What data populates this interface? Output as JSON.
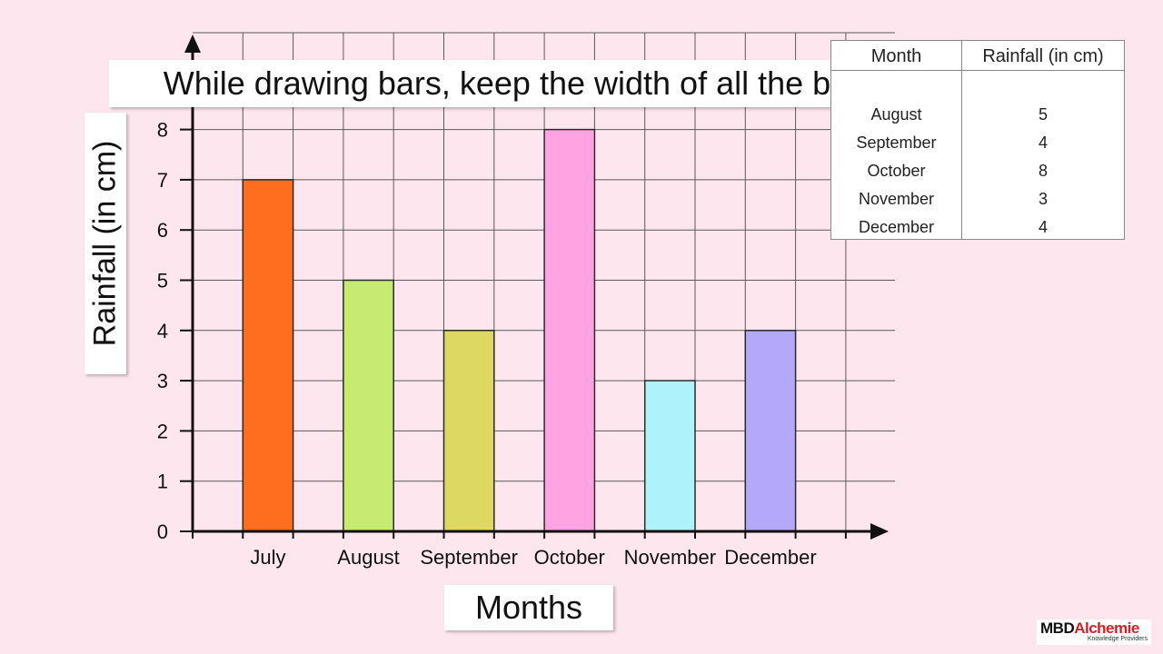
{
  "caption": "While drawing bars, keep the width of all the bars uniform.",
  "chart_data": {
    "type": "bar",
    "categories": [
      "July",
      "August",
      "September",
      "October",
      "November",
      "December"
    ],
    "values": [
      7,
      5,
      4,
      8,
      3,
      4
    ],
    "colors": [
      "#ff6d1f",
      "#c7ea73",
      "#dcd862",
      "#ffa3e3",
      "#aef2fb",
      "#b4a8fb"
    ],
    "xlabel": "Months",
    "ylabel": "Rainfall (in cm)",
    "ylim": [
      0,
      8
    ],
    "yticks": [
      0,
      1,
      2,
      3,
      4,
      5,
      6,
      7,
      8
    ],
    "grid": true
  },
  "table": {
    "headers": [
      "Month",
      "Rainfall (in cm)"
    ],
    "rows": [
      {
        "month": "August",
        "rainfall": "5"
      },
      {
        "month": "September",
        "rainfall": "4"
      },
      {
        "month": "October",
        "rainfall": "8"
      },
      {
        "month": "November",
        "rainfall": "3"
      },
      {
        "month": "December",
        "rainfall": "4"
      }
    ]
  },
  "logo": {
    "brand_a": "MBD",
    "brand_b": "Alchemie",
    "tagline": "Knowledge Providers"
  }
}
